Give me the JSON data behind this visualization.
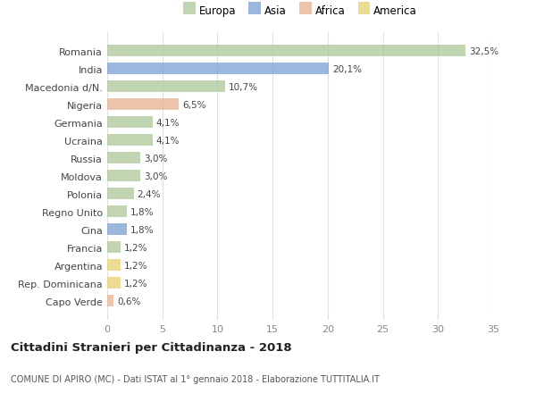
{
  "countries": [
    "Romania",
    "India",
    "Macedonia d/N.",
    "Nigeria",
    "Germania",
    "Ucraina",
    "Russia",
    "Moldova",
    "Polonia",
    "Regno Unito",
    "Cina",
    "Francia",
    "Argentina",
    "Rep. Dominicana",
    "Capo Verde"
  ],
  "values": [
    32.5,
    20.1,
    10.7,
    6.5,
    4.1,
    4.1,
    3.0,
    3.0,
    2.4,
    1.8,
    1.8,
    1.2,
    1.2,
    1.2,
    0.6
  ],
  "labels": [
    "32,5%",
    "20,1%",
    "10,7%",
    "6,5%",
    "4,1%",
    "4,1%",
    "3,0%",
    "3,0%",
    "2,4%",
    "1,8%",
    "1,8%",
    "1,2%",
    "1,2%",
    "1,2%",
    "0,6%"
  ],
  "continents": [
    "Europa",
    "Asia",
    "Europa",
    "Africa",
    "Europa",
    "Europa",
    "Europa",
    "Europa",
    "Europa",
    "Europa",
    "Asia",
    "Europa",
    "America",
    "America",
    "Africa"
  ],
  "continent_colors": {
    "Europa": "#aec898",
    "Asia": "#7b9fd4",
    "Africa": "#e8b090",
    "America": "#e8d070"
  },
  "legend_labels": [
    "Europa",
    "Asia",
    "Africa",
    "America"
  ],
  "legend_colors": [
    "#aec898",
    "#7b9fd4",
    "#e8b090",
    "#e8d070"
  ],
  "title": "Cittadini Stranieri per Cittadinanza - 2018",
  "subtitle": "COMUNE DI APIRO (MC) - Dati ISTAT al 1° gennaio 2018 - Elaborazione TUTTITALIA.IT",
  "xlim": [
    0,
    35
  ],
  "xticks": [
    0,
    5,
    10,
    15,
    20,
    25,
    30,
    35
  ],
  "background_color": "#ffffff",
  "grid_color": "#e0e0e0",
  "bar_alpha": 0.75
}
